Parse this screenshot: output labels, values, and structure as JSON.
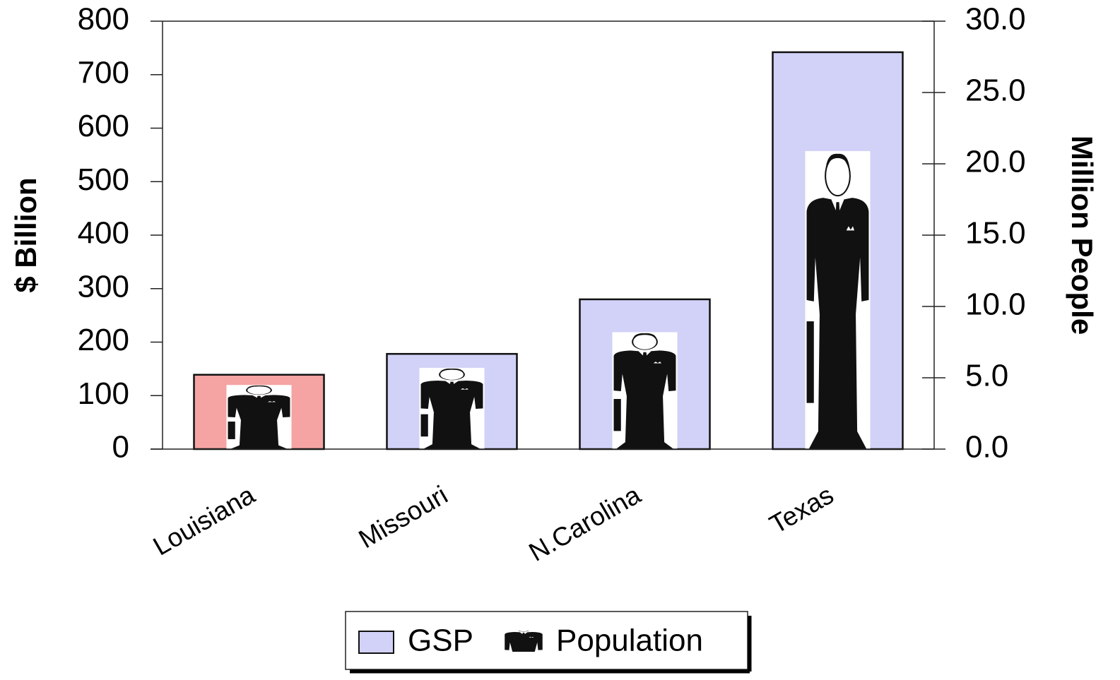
{
  "chart_data": {
    "type": "bar",
    "categories": [
      "Louisiana",
      "Missouri",
      "N.Carolina",
      "Texas"
    ],
    "series": [
      {
        "name": "GSP",
        "color": "#d2d2f8",
        "colors": [
          "#f5a3a3",
          "#d2d2f8",
          "#d2d2f8",
          "#d2d2f8"
        ],
        "values": [
          139,
          178,
          280,
          742
        ]
      },
      {
        "name": "Population",
        "color": "#111111",
        "axis": "y2",
        "values": [
          4.5,
          5.7,
          8.2,
          20.9
        ]
      }
    ],
    "ylabel": "$ Billion",
    "y2label": "Million People",
    "ylim": [
      0,
      800
    ],
    "yticks": [
      0,
      100,
      200,
      300,
      400,
      500,
      600,
      700,
      800
    ],
    "y2lim": [
      0,
      30
    ],
    "y2ticks": [
      {
        "value": 0,
        "label": "0.0"
      },
      {
        "value": 5,
        "label": "5.0"
      },
      {
        "value": 10,
        "label": "10.0"
      },
      {
        "value": 15,
        "label": "15.0"
      },
      {
        "value": 20,
        "label": "20.0"
      },
      {
        "value": 25,
        "label": "25.0"
      },
      {
        "value": 30,
        "label": "30.0"
      }
    ],
    "legend": "bottom"
  }
}
